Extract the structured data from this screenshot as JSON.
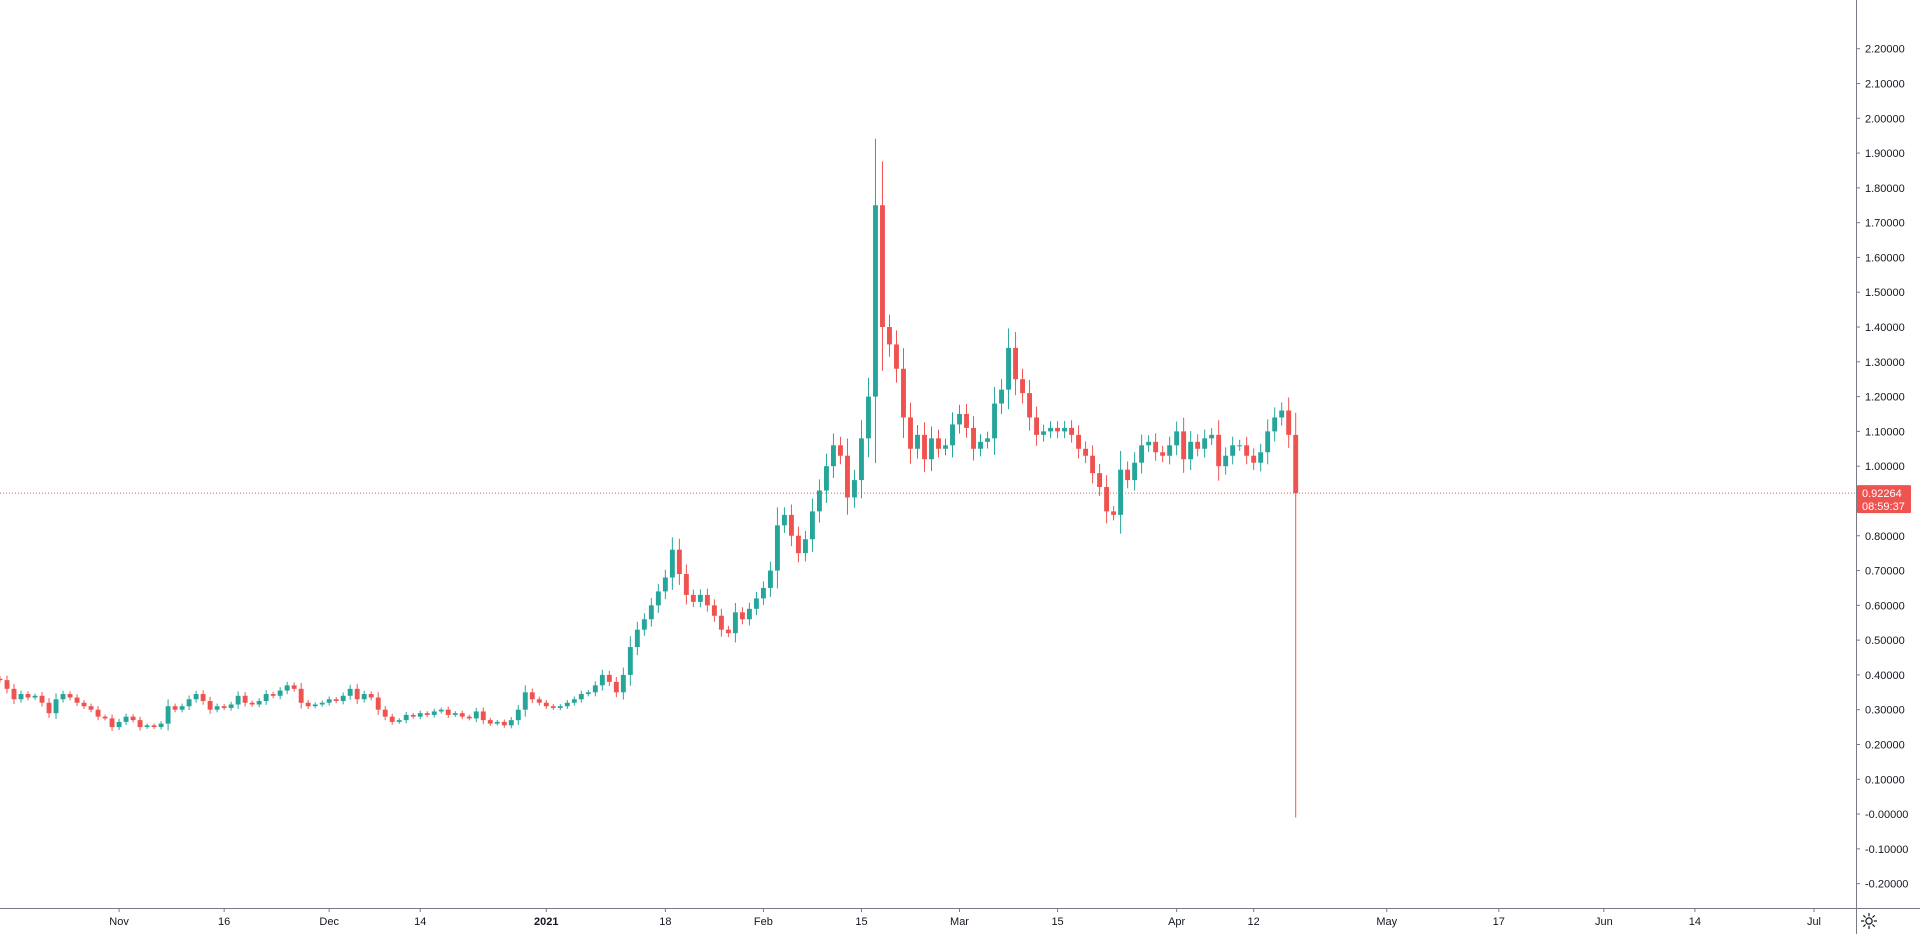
{
  "chart_data": {
    "type": "candlestick",
    "title": "",
    "xlabel": "",
    "ylabel": "",
    "ylim": [
      -0.27,
      2.34
    ],
    "x_range": [
      "2020-10-15",
      "2021-07-07"
    ],
    "y_ticks": [
      2.2,
      2.1,
      2.0,
      1.9,
      1.8,
      1.7,
      1.6,
      1.5,
      1.4,
      1.3,
      1.2,
      1.1,
      1.0,
      0.9,
      0.8,
      0.7,
      0.6,
      0.5,
      0.4,
      0.3,
      0.2,
      0.1,
      0.0,
      -0.1,
      -0.2
    ],
    "y_tick_labels": [
      "2.20000",
      "2.10000",
      "2.00000",
      "1.90000",
      "1.80000",
      "1.70000",
      "1.60000",
      "1.50000",
      "1.40000",
      "1.30000",
      "1.20000",
      "1.10000",
      "1.00000",
      "",
      "0.80000",
      "0.70000",
      "0.60000",
      "0.50000",
      "0.40000",
      "0.30000",
      "0.20000",
      "0.10000",
      "-0.00000",
      "-0.10000",
      "-0.20000"
    ],
    "x_ticks": [
      {
        "date": "2020-11-01",
        "label": "Nov"
      },
      {
        "date": "2020-11-16",
        "label": "16"
      },
      {
        "date": "2020-12-01",
        "label": "Dec"
      },
      {
        "date": "2020-12-14",
        "label": "14"
      },
      {
        "date": "2021-01-01",
        "label": "2021",
        "bold": true
      },
      {
        "date": "2021-01-18",
        "label": "18"
      },
      {
        "date": "2021-02-01",
        "label": "Feb"
      },
      {
        "date": "2021-02-15",
        "label": "15"
      },
      {
        "date": "2021-03-01",
        "label": "Mar"
      },
      {
        "date": "2021-03-15",
        "label": "15"
      },
      {
        "date": "2021-04-01",
        "label": "Apr"
      },
      {
        "date": "2021-04-12",
        "label": "12"
      },
      {
        "date": "2021-05-01",
        "label": "May"
      },
      {
        "date": "2021-05-17",
        "label": "17"
      },
      {
        "date": "2021-06-01",
        "label": "Jun"
      },
      {
        "date": "2021-06-14",
        "label": "14"
      },
      {
        "date": "2021-07-01",
        "label": "Jul"
      }
    ],
    "start_date": "2020-10-15",
    "closes": [
      0.385,
      0.36,
      0.33,
      0.345,
      0.335,
      0.34,
      0.32,
      0.29,
      0.33,
      0.345,
      0.335,
      0.32,
      0.31,
      0.3,
      0.28,
      0.275,
      0.25,
      0.265,
      0.28,
      0.27,
      0.25,
      0.255,
      0.25,
      0.26,
      0.31,
      0.3,
      0.31,
      0.33,
      0.345,
      0.325,
      0.3,
      0.31,
      0.305,
      0.315,
      0.34,
      0.32,
      0.315,
      0.325,
      0.345,
      0.34,
      0.355,
      0.37,
      0.36,
      0.32,
      0.31,
      0.315,
      0.32,
      0.33,
      0.325,
      0.34,
      0.36,
      0.33,
      0.345,
      0.335,
      0.3,
      0.28,
      0.265,
      0.27,
      0.285,
      0.28,
      0.29,
      0.285,
      0.295,
      0.3,
      0.285,
      0.29,
      0.28,
      0.275,
      0.295,
      0.27,
      0.26,
      0.265,
      0.255,
      0.27,
      0.3,
      0.35,
      0.33,
      0.32,
      0.31,
      0.305,
      0.31,
      0.32,
      0.33,
      0.345,
      0.35,
      0.37,
      0.4,
      0.38,
      0.35,
      0.4,
      0.48,
      0.53,
      0.56,
      0.6,
      0.64,
      0.68,
      0.76,
      0.69,
      0.63,
      0.61,
      0.63,
      0.6,
      0.57,
      0.53,
      0.52,
      0.58,
      0.56,
      0.59,
      0.62,
      0.65,
      0.7,
      0.83,
      0.86,
      0.8,
      0.75,
      0.79,
      0.87,
      0.93,
      1.0,
      1.06,
      1.03,
      0.91,
      0.96,
      1.08,
      1.2,
      1.75,
      1.4,
      1.35,
      1.28,
      1.14,
      1.05,
      1.09,
      1.02,
      1.08,
      1.05,
      1.06,
      1.12,
      1.15,
      1.11,
      1.05,
      1.07,
      1.08,
      1.18,
      1.22,
      1.34,
      1.25,
      1.21,
      1.14,
      1.09,
      1.1,
      1.11,
      1.1,
      1.11,
      1.09,
      1.05,
      1.03,
      0.98,
      0.94,
      0.87,
      0.86,
      0.99,
      0.96,
      1.01,
      1.06,
      1.07,
      1.04,
      1.03,
      1.06,
      1.1,
      1.02,
      1.07,
      1.05,
      1.08,
      1.09,
      1.0,
      1.03,
      1.06,
      1.06,
      1.03,
      1.01,
      1.04,
      1.1,
      1.14,
      1.16,
      1.09,
      0.9226
    ],
    "last_price_label": "0.92264",
    "countdown_label": "08:59:37",
    "last_candle_low": -0.01,
    "colors": {
      "up": "#26a69a",
      "down": "#ef5350",
      "axis_line": "#787b86",
      "text": "#131722",
      "price_line": "#ef5350",
      "background": "#ffffff"
    }
  },
  "settings_icon": "gear-icon"
}
